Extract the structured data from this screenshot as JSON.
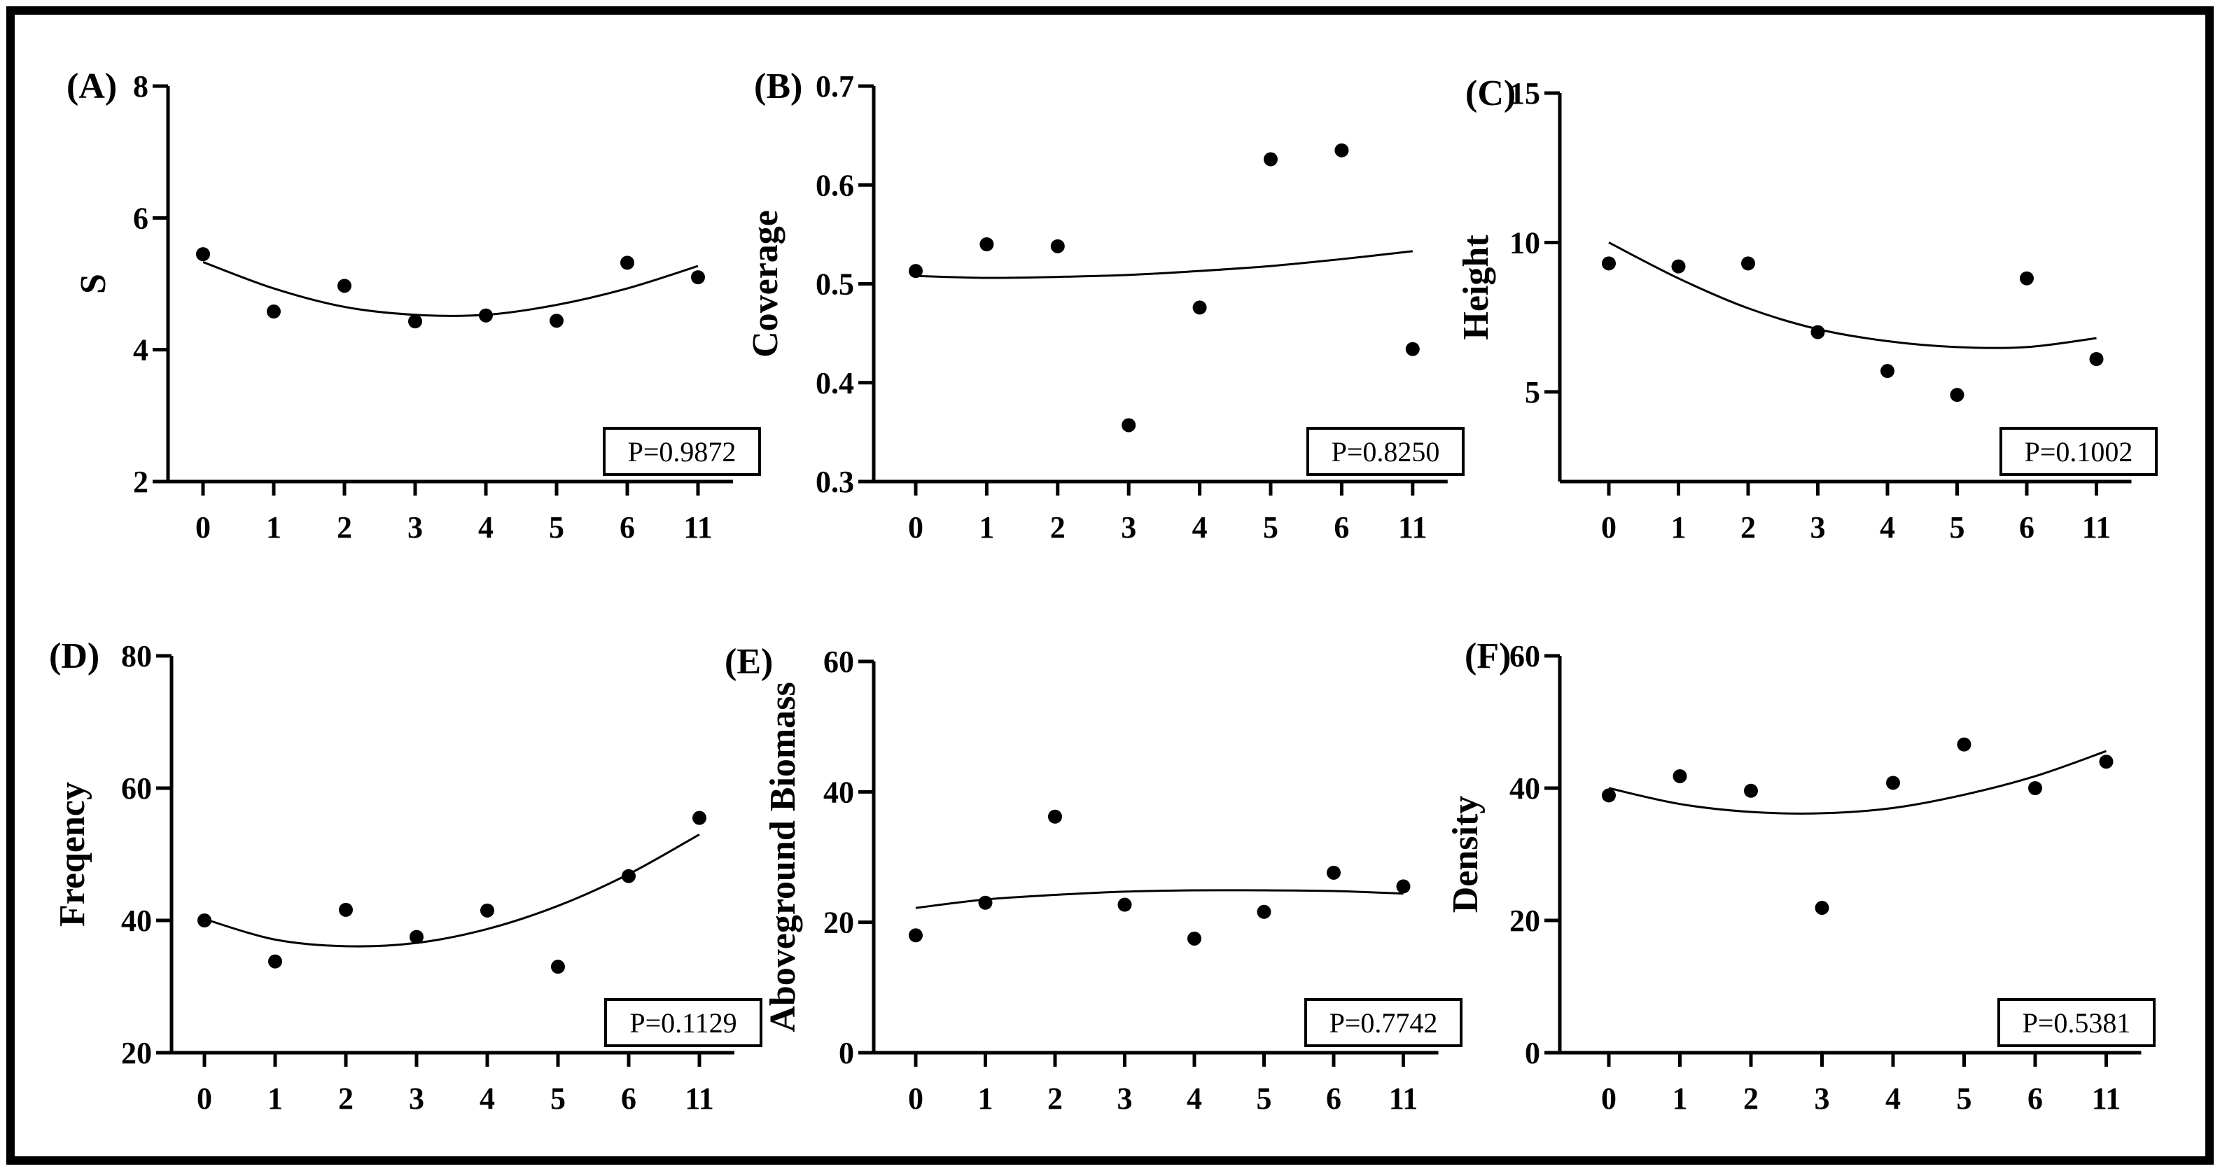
{
  "chart_data": [
    {
      "type": "scatter",
      "panel_label": "(A)",
      "ylabel": "S",
      "categories": [
        "0",
        "1",
        "2",
        "3",
        "4",
        "5",
        "6",
        "11"
      ],
      "values": [
        5.45,
        4.58,
        4.97,
        4.43,
        4.52,
        4.44,
        5.32,
        5.1
      ],
      "fit": [
        5.33,
        4.93,
        4.65,
        4.53,
        4.53,
        4.68,
        4.93,
        5.27
      ],
      "ylim": [
        2,
        8
      ],
      "yticks": [
        "2",
        "4",
        "6",
        "8"
      ],
      "p_value": "P=0.9872"
    },
    {
      "type": "scatter",
      "panel_label": "(B)",
      "ylabel": "Coverage",
      "categories": [
        "0",
        "1",
        "2",
        "3",
        "4",
        "5",
        "6",
        "11"
      ],
      "values": [
        0.513,
        0.54,
        0.538,
        0.357,
        0.476,
        0.626,
        0.635,
        0.434
      ],
      "fit": [
        0.508,
        0.506,
        0.507,
        0.509,
        0.513,
        0.518,
        0.525,
        0.533
      ],
      "ylim": [
        0.3,
        0.7
      ],
      "yticks": [
        "0.3",
        "0.4",
        "0.5",
        "0.6",
        "0.7"
      ],
      "p_value": "P=0.8250"
    },
    {
      "type": "scatter",
      "panel_label": "(C)",
      "ylabel": "Height",
      "categories": [
        "0",
        "1",
        "2",
        "3",
        "4",
        "5",
        "6",
        "11"
      ],
      "values": [
        9.3,
        9.2,
        9.3,
        7.0,
        5.7,
        4.9,
        8.8,
        6.1
      ],
      "fit": [
        10.0,
        8.8,
        7.8,
        7.1,
        6.7,
        6.5,
        6.5,
        6.8
      ],
      "ylim": [
        2,
        15
      ],
      "yticks": [
        "5",
        "10",
        "15"
      ],
      "p_value": "P=0.1002"
    },
    {
      "type": "scatter",
      "panel_label": "(D)",
      "ylabel": "Freqency",
      "categories": [
        "0",
        "1",
        "2",
        "3",
        "4",
        "5",
        "6",
        "11"
      ],
      "values": [
        40.0,
        33.8,
        41.6,
        37.5,
        41.5,
        33.0,
        46.7,
        55.5
      ],
      "fit": [
        40.2,
        37.1,
        36.1,
        36.6,
        38.7,
        42.2,
        47.0,
        53.0
      ],
      "ylim": [
        20,
        80
      ],
      "yticks": [
        "20",
        "40",
        "60",
        "80"
      ],
      "p_value": "P=0.1129"
    },
    {
      "type": "scatter",
      "panel_label": "(E)",
      "ylabel": "Aboveground Biomass",
      "categories": [
        "0",
        "1",
        "2",
        "3",
        "4",
        "5",
        "6",
        "11"
      ],
      "values": [
        18.0,
        23.0,
        36.2,
        22.7,
        17.5,
        21.6,
        27.6,
        25.5
      ],
      "fit": [
        22.2,
        23.5,
        24.2,
        24.7,
        24.9,
        24.9,
        24.8,
        24.4
      ],
      "ylim": [
        0,
        60
      ],
      "yticks": [
        "0",
        "20",
        "40",
        "60"
      ],
      "p_value": "P=0.7742"
    },
    {
      "type": "scatter",
      "panel_label": "(F)",
      "ylabel": "Density",
      "categories": [
        "0",
        "1",
        "2",
        "3",
        "4",
        "5",
        "6",
        "11"
      ],
      "values": [
        38.9,
        41.8,
        39.6,
        21.9,
        40.8,
        46.6,
        40.0,
        44.0
      ],
      "fit": [
        40.0,
        37.6,
        36.4,
        36.2,
        37.0,
        39.0,
        41.8,
        45.6
      ],
      "ylim": [
        0,
        60
      ],
      "yticks": [
        "0",
        "20",
        "40",
        "60"
      ],
      "p_value": "P=0.5381"
    }
  ]
}
